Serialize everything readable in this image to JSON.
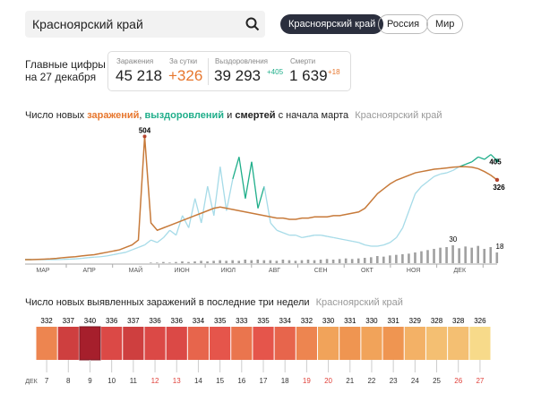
{
  "search": {
    "text": "Красноярский край"
  },
  "tabs": [
    "Красноярский край",
    "Россия",
    "Мир"
  ],
  "summary": {
    "line1": "Главные цифры",
    "line2": "на 27 декабря",
    "stats": [
      {
        "label": "Заражения",
        "value": "45 218"
      },
      {
        "label": "За сутки",
        "value": "+326"
      },
      {
        "label": "Выздоровления",
        "value": "39 293",
        "delta": "+405"
      },
      {
        "label": "Смерти",
        "value": "1 639",
        "delta": "+18"
      }
    ]
  },
  "chart_data": [
    {
      "type": "line",
      "title_start": "Число новых ",
      "sep1": ", ",
      "sep2": " и ",
      "title_end": " с начала марта",
      "region": "Красноярский край",
      "months": [
        "МАР",
        "АПР",
        "МАЙ",
        "ИЮН",
        "ИЮЛ",
        "АВГ",
        "СЕН",
        "ОКТ",
        "НОЯ",
        "ДЕК"
      ],
      "ylim": [
        0,
        520
      ],
      "y2lim": [
        0,
        45
      ],
      "series": [
        {
          "name": "заражений",
          "color": "#c77a3a",
          "values": [
            0,
            0,
            1,
            2,
            3,
            5,
            8,
            10,
            12,
            15,
            18,
            20,
            25,
            30,
            35,
            40,
            50,
            60,
            80,
            504,
            150,
            120,
            130,
            140,
            150,
            160,
            170,
            180,
            190,
            200,
            210,
            215,
            210,
            205,
            200,
            195,
            190,
            185,
            180,
            175,
            170,
            170,
            165,
            165,
            170,
            170,
            175,
            175,
            175,
            180,
            180,
            185,
            190,
            195,
            210,
            240,
            270,
            290,
            310,
            325,
            335,
            345,
            355,
            360,
            365,
            370,
            372,
            375,
            378,
            380,
            380,
            378,
            372,
            360,
            345,
            326
          ]
        },
        {
          "name": "выздоровлений",
          "color": "#1fae8a",
          "color_below": "#a6dbe8",
          "values": [
            0,
            0,
            0,
            0,
            0,
            0,
            1,
            2,
            3,
            5,
            8,
            10,
            12,
            15,
            20,
            25,
            30,
            40,
            50,
            60,
            80,
            70,
            90,
            120,
            100,
            180,
            130,
            250,
            150,
            300,
            180,
            380,
            200,
            330,
            420,
            250,
            400,
            210,
            300,
            150,
            120,
            110,
            100,
            100,
            90,
            95,
            100,
            100,
            95,
            90,
            85,
            80,
            75,
            70,
            60,
            55,
            55,
            60,
            70,
            90,
            130,
            200,
            270,
            300,
            320,
            340,
            350,
            355,
            365,
            380,
            390,
            400,
            420,
            410,
            430,
            405
          ]
        },
        {
          "name": "смертей",
          "color": "#a0a0a0",
          "axis": "y2",
          "values": [
            0,
            0,
            0,
            0,
            0,
            0,
            0,
            0,
            0,
            0,
            0,
            0,
            0,
            0,
            0,
            0,
            0,
            0,
            0,
            0,
            1,
            1,
            2,
            1,
            2,
            3,
            2,
            3,
            4,
            3,
            4,
            5,
            4,
            5,
            4,
            6,
            5,
            6,
            5,
            5,
            4,
            6,
            5,
            4,
            5,
            6,
            5,
            6,
            7,
            6,
            7,
            8,
            7,
            8,
            9,
            10,
            12,
            11,
            13,
            14,
            15,
            16,
            18,
            20,
            22,
            24,
            26,
            27,
            30,
            25,
            28,
            26,
            29,
            24,
            27,
            18
          ]
        }
      ]
    },
    {
      "type": "heatbar",
      "title": "Число новых выявленных заражений в последние три недели",
      "region": "Красноярский край",
      "month_label": "ДЕК",
      "categories": [
        "7",
        "8",
        "9",
        "10",
        "11",
        "12",
        "13",
        "14",
        "15",
        "16",
        "17",
        "18",
        "19",
        "20",
        "21",
        "22",
        "23",
        "24",
        "25",
        "26",
        "27"
      ],
      "values": [
        332,
        337,
        340,
        336,
        337,
        336,
        336,
        334,
        335,
        333,
        335,
        334,
        332,
        330,
        331,
        330,
        331,
        329,
        328,
        328,
        326
      ],
      "weekend": [
        false,
        false,
        false,
        false,
        false,
        true,
        true,
        false,
        false,
        false,
        false,
        false,
        true,
        true,
        false,
        false,
        false,
        false,
        false,
        true,
        true
      ],
      "weekend_color": "#e0413a",
      "color_scale": [
        "#f7da8a",
        "#f09a52",
        "#e4504a",
        "#a61f2c"
      ]
    }
  ]
}
